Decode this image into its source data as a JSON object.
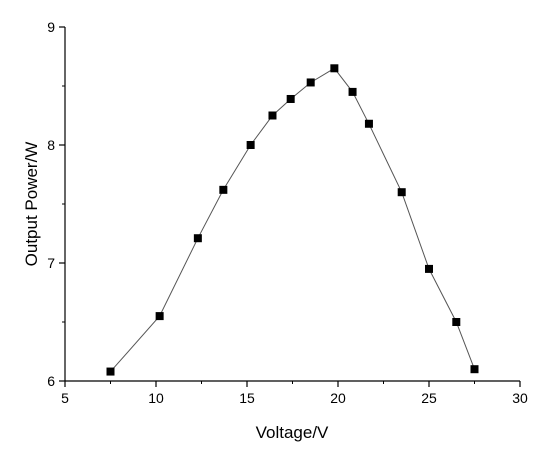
{
  "chart_data": {
    "type": "line",
    "title": "",
    "xlabel": "Voltage/V",
    "ylabel": "Output Power/W",
    "xlim": [
      5,
      30
    ],
    "ylim": [
      6,
      9
    ],
    "xticks": [
      5,
      10,
      15,
      20,
      25,
      30
    ],
    "yticks": [
      6,
      7,
      8,
      9
    ],
    "grid": false,
    "marker": "square",
    "colors": {
      "line": "#555555",
      "marker": "#000000",
      "axis": "#000000"
    },
    "series": [
      {
        "x": [
          7.5,
          10.2,
          12.3,
          13.7,
          15.2,
          16.4,
          17.4,
          18.5,
          19.8,
          20.8,
          21.7,
          23.5,
          25.0,
          26.5,
          27.5
        ],
        "y": [
          6.08,
          6.55,
          7.21,
          7.62,
          8.0,
          8.25,
          8.39,
          8.53,
          8.65,
          8.45,
          8.18,
          7.6,
          6.95,
          6.5,
          6.1
        ]
      }
    ]
  }
}
